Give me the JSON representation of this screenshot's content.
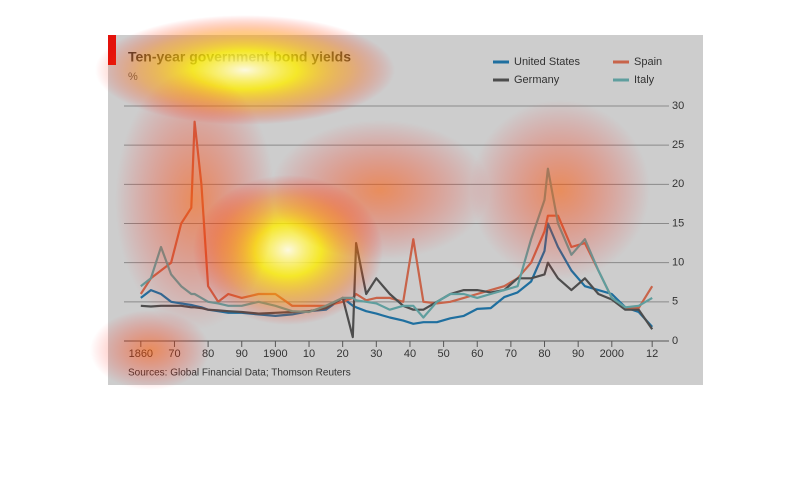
{
  "chart_data": {
    "type": "line",
    "title": "Ten-year government bond yields",
    "y_label": "%",
    "source": "Sources: Global Financial Data; Thomson Reuters",
    "x": [
      1860,
      1863,
      1866,
      1869,
      1872,
      1875,
      1876,
      1878,
      1880,
      1883,
      1886,
      1890,
      1895,
      1900,
      1905,
      1910,
      1915,
      1920,
      1923,
      1924,
      1927,
      1930,
      1934,
      1938,
      1941,
      1944,
      1948,
      1952,
      1956,
      1960,
      1964,
      1968,
      1972,
      1976,
      1980,
      1981,
      1984,
      1988,
      1992,
      1996,
      2000,
      2004,
      2008,
      2012
    ],
    "series": [
      {
        "name": "United States",
        "color": "#1f6f9f",
        "values": [
          5.5,
          6.5,
          6,
          5,
          4.8,
          4.6,
          4.5,
          4.3,
          4.0,
          3.8,
          3.6,
          3.6,
          3.4,
          3.2,
          3.4,
          3.8,
          4.0,
          5.5,
          4.5,
          4.3,
          3.8,
          3.5,
          3.0,
          2.6,
          2.2,
          2.4,
          2.4,
          2.9,
          3.2,
          4.1,
          4.2,
          5.6,
          6.2,
          7.6,
          11.5,
          15,
          12,
          9,
          7,
          6.5,
          6,
          4.3,
          3.7,
          1.8
        ]
      },
      {
        "name": "Spain",
        "color": "#c8644a",
        "values": [
          6,
          8,
          9,
          10,
          15,
          17,
          28,
          20,
          7,
          5,
          6,
          5.5,
          6,
          6,
          4.5,
          4.5,
          4.5,
          5,
          5.5,
          6,
          5.2,
          5.5,
          5.5,
          5,
          13,
          5,
          4.8,
          5,
          5.5,
          6,
          6.5,
          7,
          8,
          10,
          14,
          16,
          16,
          12,
          12.5,
          9,
          5.5,
          4.2,
          4.2,
          7
        ]
      },
      {
        "name": "Germany",
        "color": "#4d4d4d",
        "values": [
          4.5,
          4.4,
          4.5,
          4.5,
          4.5,
          4.3,
          4.3,
          4.2,
          4.0,
          3.9,
          3.8,
          3.7,
          3.5,
          3.6,
          3.7,
          3.8,
          4.2,
          5.5,
          0.5,
          12.5,
          6,
          8,
          6,
          4.5,
          4,
          4,
          5,
          6,
          6.5,
          6.5,
          6.2,
          6.5,
          8,
          8,
          8.5,
          10,
          8,
          6.5,
          8,
          6,
          5.3,
          4,
          4,
          1.5
        ]
      },
      {
        "name": "Italy",
        "color": "#5f9e9e",
        "values": [
          7,
          8,
          12,
          8.5,
          7,
          6,
          6,
          5.5,
          5,
          4.8,
          4.5,
          4.5,
          5,
          4.5,
          3.8,
          3.7,
          4.5,
          5.5,
          5.5,
          5.2,
          5,
          4.8,
          4,
          4.5,
          4.5,
          3,
          5,
          6,
          6,
          5.5,
          6,
          6.5,
          7,
          13,
          18,
          22,
          15,
          11,
          13,
          9,
          5.5,
          4.3,
          4.5,
          5.5
        ]
      }
    ],
    "xlim": [
      1855,
      2017
    ],
    "xticks": [
      {
        "value": 1860,
        "label": "1860"
      },
      {
        "value": 1870,
        "label": "70"
      },
      {
        "value": 1880,
        "label": "80"
      },
      {
        "value": 1890,
        "label": "90"
      },
      {
        "value": 1900,
        "label": "1900"
      },
      {
        "value": 1910,
        "label": "10"
      },
      {
        "value": 1920,
        "label": "20"
      },
      {
        "value": 1930,
        "label": "30"
      },
      {
        "value": 1940,
        "label": "40"
      },
      {
        "value": 1950,
        "label": "50"
      },
      {
        "value": 1960,
        "label": "60"
      },
      {
        "value": 1970,
        "label": "70"
      },
      {
        "value": 1980,
        "label": "80"
      },
      {
        "value": 1990,
        "label": "90"
      },
      {
        "value": 2000,
        "label": "2000"
      },
      {
        "value": 2012,
        "label": "12"
      }
    ],
    "ylim": [
      0,
      30
    ],
    "yticks": [
      0,
      5,
      10,
      15,
      20,
      25,
      30
    ],
    "grid": true
  }
}
